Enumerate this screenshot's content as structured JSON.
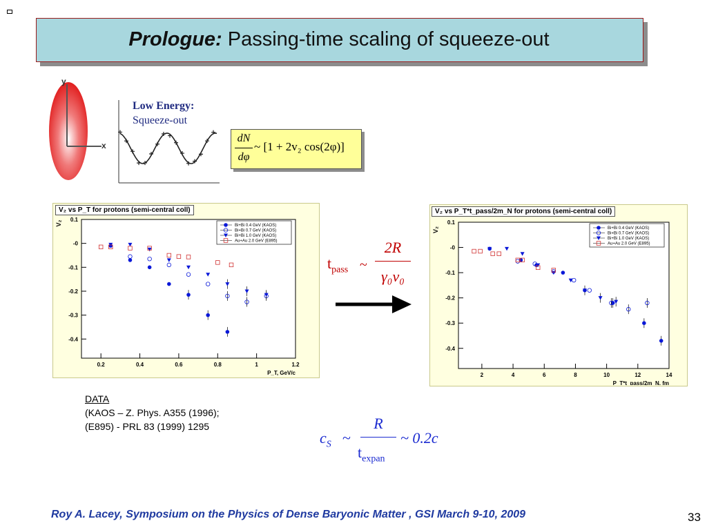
{
  "title": {
    "em": "Prologue:",
    "rest": " Passing-time scaling of squeeze-out"
  },
  "sketch": {
    "axis_y": "y",
    "axis_x": "x"
  },
  "low_energy": {
    "label": "Low Energy:",
    "sub": "Squeeze-out"
  },
  "formula_dn": {
    "num": "dN",
    "den": "dφ",
    "rhs": "~ [1 + 2v₂ cos(2φ)]"
  },
  "tpass": {
    "lhs": "t",
    "lhs_sub": "pass",
    "tilde": "~",
    "num": "2R",
    "den": "γ₀v₀"
  },
  "cs": {
    "lhs": "c",
    "lhs_sub": "S",
    "tilde": "~",
    "num": "R",
    "den": "t",
    "den_sub": "expan",
    "rhs": "~ 0.2c"
  },
  "data_refs": {
    "heading": "DATA",
    "line1": "(KAOS – Z. Phys. A355 (1996);",
    "line2": "(E895) - PRL 83 (1999) 1295"
  },
  "footer": {
    "credit": "Roy A. Lacey, Symposium on the Physics of Dense Baryonic Matter , GSI March 9-10, 2009",
    "page": "33"
  },
  "colors": {
    "marker": "#0a18d8",
    "e895": "#d03030",
    "footer": "#1f3aa0"
  },
  "chart_data": [
    {
      "type": "scatter",
      "title": "V₂ vs P_T for protons (semi-central coll)",
      "ylabel": "V₂",
      "xlabel": "P_T, GeV/c",
      "xlim": [
        0.1,
        1.2
      ],
      "ylim": [
        -0.48,
        0.1
      ],
      "xticks": [
        0.2,
        0.4,
        0.6,
        0.8,
        1,
        1.2
      ],
      "xtick_labels": [
        "0.2",
        "0.4",
        "0.6",
        "0.8",
        "1",
        "1.2"
      ],
      "yticks": [
        0.1,
        0,
        -0.1,
        -0.2,
        -0.3,
        -0.4
      ],
      "ytick_labels": [
        "0.1",
        "-0",
        "-0.1",
        "-0.2",
        "-0.3",
        "-0.4"
      ],
      "legend_position": "top-right",
      "series": [
        {
          "name": "Bi+Bi 0.4 GeV (KAOS)",
          "marker": "filled-circle",
          "x": [
            0.25,
            0.35,
            0.45,
            0.55,
            0.65,
            0.75,
            0.85
          ],
          "y": [
            -0.01,
            -0.07,
            -0.1,
            -0.17,
            -0.215,
            -0.3,
            -0.37
          ]
        },
        {
          "name": "Bi+Bi 0.7 GeV (KAOS)",
          "marker": "open-circle",
          "x": [
            0.35,
            0.45,
            0.55,
            0.65,
            0.75,
            0.85,
            0.95,
            1.05
          ],
          "y": [
            -0.055,
            -0.065,
            -0.09,
            -0.13,
            -0.17,
            -0.22,
            -0.245,
            -0.22
          ]
        },
        {
          "name": "Bi+Bi 1.0 GeV (KAOS)",
          "marker": "filled-triangle-down",
          "x": [
            0.25,
            0.35,
            0.45,
            0.55,
            0.65,
            0.75,
            0.85,
            0.95,
            1.05
          ],
          "y": [
            -0.005,
            -0.005,
            -0.025,
            -0.07,
            -0.1,
            -0.13,
            -0.17,
            -0.2,
            -0.215
          ]
        },
        {
          "name": "Au+Au 2.0 GeV (E895)",
          "marker": "open-square",
          "x": [
            0.2,
            0.25,
            0.35,
            0.45,
            0.55,
            0.6,
            0.65,
            0.8,
            0.87
          ],
          "y": [
            -0.015,
            -0.015,
            -0.02,
            -0.02,
            -0.05,
            -0.055,
            -0.057,
            -0.08,
            -0.09
          ]
        }
      ]
    },
    {
      "type": "scatter",
      "title": "V₂ vs P_T*t_pass/2m_N for protons (semi-central coll)",
      "ylabel": "V₂",
      "xlabel": "P_T*t_pass/2m_N, fm",
      "xlim": [
        0.5,
        14
      ],
      "ylim": [
        -0.48,
        0.1
      ],
      "xticks": [
        2,
        4,
        6,
        8,
        10,
        12,
        14
      ],
      "xtick_labels": [
        "2",
        "4",
        "6",
        "8",
        "10",
        "12",
        "14"
      ],
      "yticks": [
        0.1,
        0,
        -0.1,
        -0.2,
        -0.3,
        -0.4
      ],
      "ytick_labels": [
        "0.1",
        "-0",
        "-0.1",
        "-0.2",
        "-0.3",
        "-0.4"
      ],
      "legend_position": "top-right",
      "series": [
        {
          "name": "Bi+Bi 0.4 GeV (KAOS)",
          "marker": "filled-circle",
          "x": [
            2.5,
            4.5,
            5.5,
            7.2,
            8.6,
            10.4,
            12.4,
            13.5
          ],
          "y": [
            -0.005,
            -0.05,
            -0.07,
            -0.1,
            -0.17,
            -0.22,
            -0.3,
            -0.37
          ]
        },
        {
          "name": "Bi+Bi 0.7 GeV (KAOS)",
          "marker": "open-circle",
          "x": [
            4.3,
            5.4,
            6.6,
            7.9,
            8.9,
            10.3,
            11.4,
            12.6
          ],
          "y": [
            -0.055,
            -0.065,
            -0.095,
            -0.13,
            -0.17,
            -0.22,
            -0.245,
            -0.22
          ]
        },
        {
          "name": "Bi+Bi 1.0 GeV (KAOS)",
          "marker": "filled-triangle-down",
          "x": [
            2.5,
            3.6,
            4.6,
            5.6,
            6.6,
            7.7,
            8.6,
            9.6,
            10.6
          ],
          "y": [
            -0.005,
            -0.005,
            -0.025,
            -0.07,
            -0.1,
            -0.13,
            -0.17,
            -0.2,
            -0.215
          ]
        },
        {
          "name": "Au+Au 2.0 GeV (E895)",
          "marker": "open-square",
          "x": [
            1.5,
            1.9,
            2.7,
            3.1,
            4.3,
            4.6,
            5.6,
            6.6
          ],
          "y": [
            -0.015,
            -0.015,
            -0.025,
            -0.025,
            -0.05,
            -0.05,
            -0.08,
            -0.09
          ]
        }
      ]
    }
  ]
}
